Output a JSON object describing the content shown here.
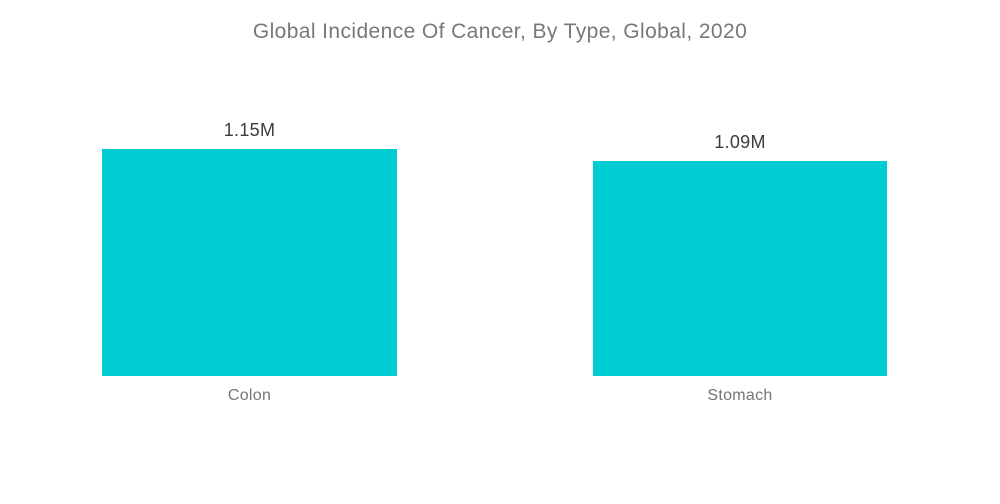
{
  "title": "Global Incidence Of Cancer, By Type, Global, 2020",
  "colors": {
    "bar": "#00CDD1",
    "title_text": "#787878",
    "value_text": "#3D3D3D",
    "category_text": "#757575",
    "background": "#FFFFFF"
  },
  "chart_data": {
    "type": "bar",
    "title": "Global Incidence Of Cancer, By Type, Global, 2020",
    "categories": [
      "Colon",
      "Stomach"
    ],
    "values": [
      1.15,
      1.09
    ],
    "value_labels": [
      "1.15M",
      "1.09M"
    ],
    "ylim": [
      0,
      1.15
    ],
    "grid": false,
    "axes_visible": false,
    "legend": "none",
    "bar_color": "#00CDD1",
    "layout": "two separated bars, data labels above bars, category labels below"
  }
}
